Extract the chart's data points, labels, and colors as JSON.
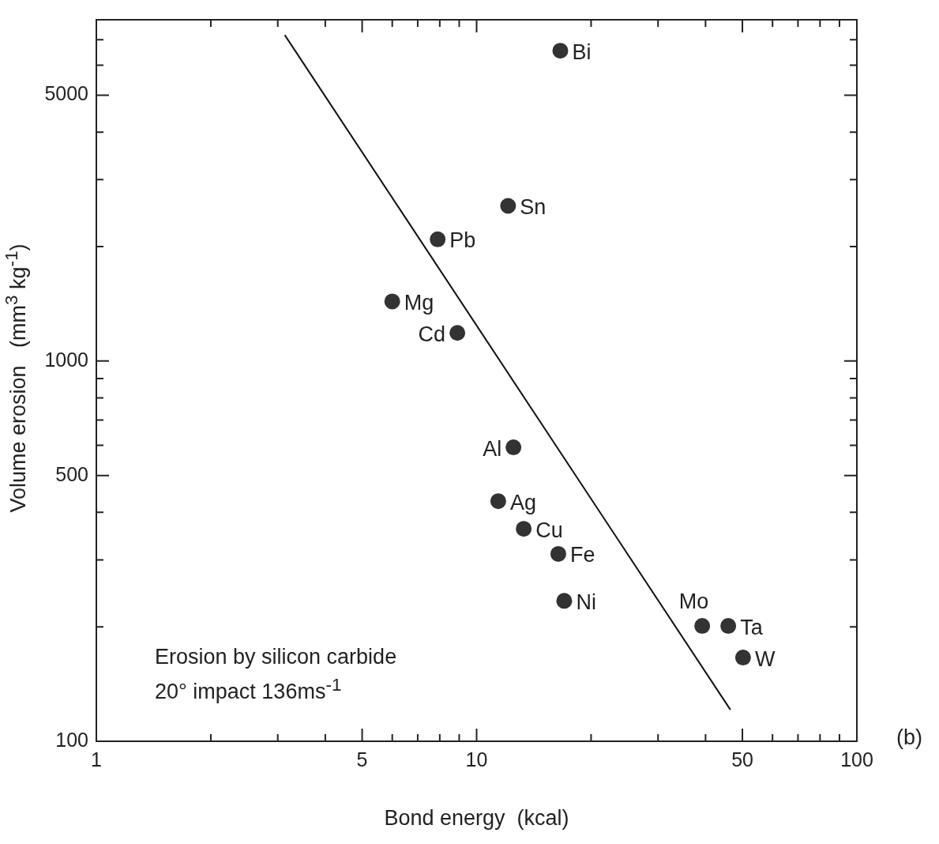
{
  "chart_data": {
    "type": "scatter",
    "xlabel": "Bond energy  (kcal)",
    "ylabel": "Volume erosion   (mm$^{3}$ kg$^{-1}$)",
    "log": "xy",
    "grid": false,
    "legend": false,
    "marker": "circle",
    "xlim": [
      1,
      100
    ],
    "xticks": [
      1,
      {
        "value": 2,
        "label": null
      },
      {
        "value": 3,
        "label": null
      },
      {
        "value": 4,
        "label": null
      },
      5,
      {
        "value": 6,
        "label": null
      },
      {
        "value": 7,
        "label": null
      },
      {
        "value": 8,
        "label": null
      },
      {
        "value": 9,
        "label": null
      },
      10,
      {
        "value": 20,
        "label": null
      },
      {
        "value": 30,
        "label": null
      },
      {
        "value": 40,
        "label": null
      },
      50,
      {
        "value": 60,
        "label": null
      },
      {
        "value": 70,
        "label": null
      },
      {
        "value": 80,
        "label": null
      },
      {
        "value": 90,
        "label": null
      },
      100
    ],
    "ylim": [
      100,
      7900
    ],
    "yticks": [
      100,
      {
        "value": 200,
        "label": null
      },
      {
        "value": 300,
        "label": null
      },
      {
        "value": 400,
        "label": null
      },
      500,
      {
        "value": 600,
        "label": null
      },
      {
        "value": 700,
        "label": null
      },
      {
        "value": 800,
        "label": null
      },
      {
        "value": 900,
        "label": null
      },
      1000,
      {
        "value": 2000,
        "label": null
      },
      {
        "value": 3000,
        "label": null
      },
      {
        "value": 4000,
        "label": null
      },
      5000,
      {
        "value": 6000,
        "label": null
      },
      {
        "value": 7000,
        "label": null
      }
    ],
    "series": [
      {
        "type": "scatter",
        "color": "#333333",
        "x": [
          16.6,
          12.1,
          7.9,
          6.0,
          8.9,
          12.5,
          11.4,
          13.3,
          16.4,
          17.0,
          39.2,
          45.9,
          50.2
        ],
        "values": [
          6550,
          2560,
          2090,
          1435,
          1186,
          593,
          428,
          362,
          311,
          234,
          201,
          201,
          166
        ]
      },
      {
        "type": "line",
        "color": "#111111",
        "marker": "none",
        "x": [
          3.13,
          46.5
        ],
        "values": [
          7200,
          121
        ]
      }
    ],
    "annotations": [
      {
        "text": "Bi",
        "x": 16.6,
        "y": 6550
      },
      {
        "text": "Sn",
        "x": 12.1,
        "y": 2560
      },
      {
        "text": "Pb",
        "x": 7.9,
        "y": 2090
      },
      {
        "text": "Mg",
        "x": 6.0,
        "y": 1435
      },
      {
        "text": "Cd",
        "x": 8.9,
        "y": 1186
      },
      {
        "text": "Al",
        "x": 12.5,
        "y": 593
      },
      {
        "text": "Ag",
        "x": 11.4,
        "y": 428
      },
      {
        "text": "Cu",
        "x": 13.3,
        "y": 362
      },
      {
        "text": "Fe",
        "x": 16.4,
        "y": 311
      },
      {
        "text": "Ni",
        "x": 17.0,
        "y": 234
      },
      {
        "text": "Mo",
        "x": 39.2,
        "y": 201
      },
      {
        "text": "Ta",
        "x": 45.9,
        "y": 201
      },
      {
        "text": "W",
        "x": 50.2,
        "y": 166
      },
      "Erosion by silicon carbide",
      "20° impact 136ms$^{-1}$",
      "(b)"
    ]
  }
}
